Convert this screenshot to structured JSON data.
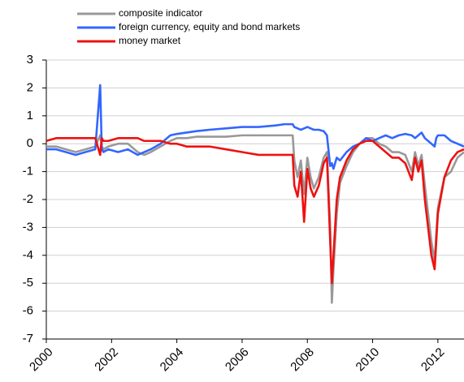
{
  "chart_data": {
    "type": "line",
    "legend": "top",
    "grid": true,
    "xlim": [
      2000,
      2012.8
    ],
    "xticks": [
      2000,
      2002,
      2004,
      2006,
      2008,
      2010,
      2012
    ],
    "ylim": [
      -7,
      3
    ],
    "yticks": [
      -7,
      -6,
      -5,
      -4,
      -3,
      -2,
      -1,
      0,
      1,
      2,
      3
    ],
    "x": [
      2000.0,
      2000.3,
      2000.6,
      2000.9,
      2001.2,
      2001.5,
      2001.65,
      2001.7,
      2001.75,
      2001.9,
      2002.2,
      2002.5,
      2002.8,
      2003.0,
      2003.2,
      2003.5,
      2003.8,
      2004.0,
      2004.3,
      2004.6,
      2005.0,
      2005.5,
      2006.0,
      2006.5,
      2007.0,
      2007.3,
      2007.55,
      2007.6,
      2007.7,
      2007.8,
      2007.9,
      2008.0,
      2008.1,
      2008.2,
      2008.35,
      2008.5,
      2008.6,
      2008.7,
      2008.75,
      2008.8,
      2008.9,
      2009.0,
      2009.2,
      2009.4,
      2009.6,
      2009.8,
      2010.0,
      2010.2,
      2010.4,
      2010.6,
      2010.8,
      2011.0,
      2011.2,
      2011.3,
      2011.4,
      2011.5,
      2011.6,
      2011.7,
      2011.8,
      2011.9,
      2011.95,
      2012.0,
      2012.2,
      2012.4,
      2012.6,
      2012.8
    ],
    "series": [
      {
        "name": "composite indicator",
        "color": "#999999",
        "values": [
          -0.1,
          -0.1,
          -0.2,
          -0.3,
          -0.2,
          -0.1,
          0.3,
          -0.1,
          -0.2,
          -0.1,
          0.0,
          0.0,
          -0.3,
          -0.4,
          -0.3,
          -0.1,
          0.1,
          0.2,
          0.2,
          0.25,
          0.25,
          0.25,
          0.3,
          0.3,
          0.3,
          0.3,
          0.3,
          -0.6,
          -1.2,
          -0.6,
          -1.8,
          -0.5,
          -1.2,
          -1.6,
          -1.2,
          -0.5,
          -0.3,
          -3.0,
          -5.7,
          -4.5,
          -2.5,
          -1.4,
          -0.8,
          -0.3,
          0.0,
          0.2,
          0.2,
          0.0,
          -0.1,
          -0.3,
          -0.3,
          -0.4,
          -1.0,
          -0.3,
          -0.8,
          -0.4,
          -1.5,
          -2.5,
          -3.5,
          -4.2,
          -3.2,
          -2.3,
          -1.2,
          -1.0,
          -0.5,
          -0.3
        ]
      },
      {
        "name": "foreign currency, equity and bond markets",
        "color": "#3366ff",
        "values": [
          -0.2,
          -0.2,
          -0.3,
          -0.4,
          -0.3,
          -0.2,
          2.1,
          -0.2,
          -0.3,
          -0.2,
          -0.3,
          -0.2,
          -0.4,
          -0.3,
          -0.2,
          0.0,
          0.3,
          0.35,
          0.4,
          0.45,
          0.5,
          0.55,
          0.6,
          0.6,
          0.65,
          0.7,
          0.7,
          0.6,
          0.55,
          0.5,
          0.55,
          0.6,
          0.55,
          0.5,
          0.5,
          0.45,
          0.3,
          -0.8,
          -0.7,
          -0.9,
          -0.5,
          -0.6,
          -0.3,
          -0.1,
          0.0,
          0.2,
          0.1,
          0.2,
          0.3,
          0.2,
          0.3,
          0.35,
          0.3,
          0.2,
          0.3,
          0.4,
          0.2,
          0.1,
          0.0,
          -0.1,
          0.2,
          0.3,
          0.3,
          0.1,
          0.0,
          -0.1
        ]
      },
      {
        "name": "money market",
        "color": "#ee1111",
        "values": [
          0.1,
          0.2,
          0.2,
          0.2,
          0.2,
          0.2,
          -0.4,
          0.2,
          0.1,
          0.1,
          0.2,
          0.2,
          0.2,
          0.1,
          0.1,
          0.1,
          0.0,
          0.0,
          -0.1,
          -0.1,
          -0.1,
          -0.2,
          -0.3,
          -0.4,
          -0.4,
          -0.4,
          -0.4,
          -1.5,
          -1.9,
          -1.0,
          -2.8,
          -0.9,
          -1.6,
          -1.9,
          -1.5,
          -0.7,
          -0.5,
          -3.5,
          -5.0,
          -4.0,
          -2.0,
          -1.2,
          -0.6,
          -0.2,
          0.0,
          0.1,
          0.1,
          -0.1,
          -0.3,
          -0.5,
          -0.5,
          -0.7,
          -1.3,
          -0.5,
          -1.0,
          -0.6,
          -2.0,
          -3.0,
          -4.0,
          -4.5,
          -3.5,
          -2.5,
          -1.2,
          -0.6,
          -0.3,
          -0.2
        ]
      }
    ]
  }
}
